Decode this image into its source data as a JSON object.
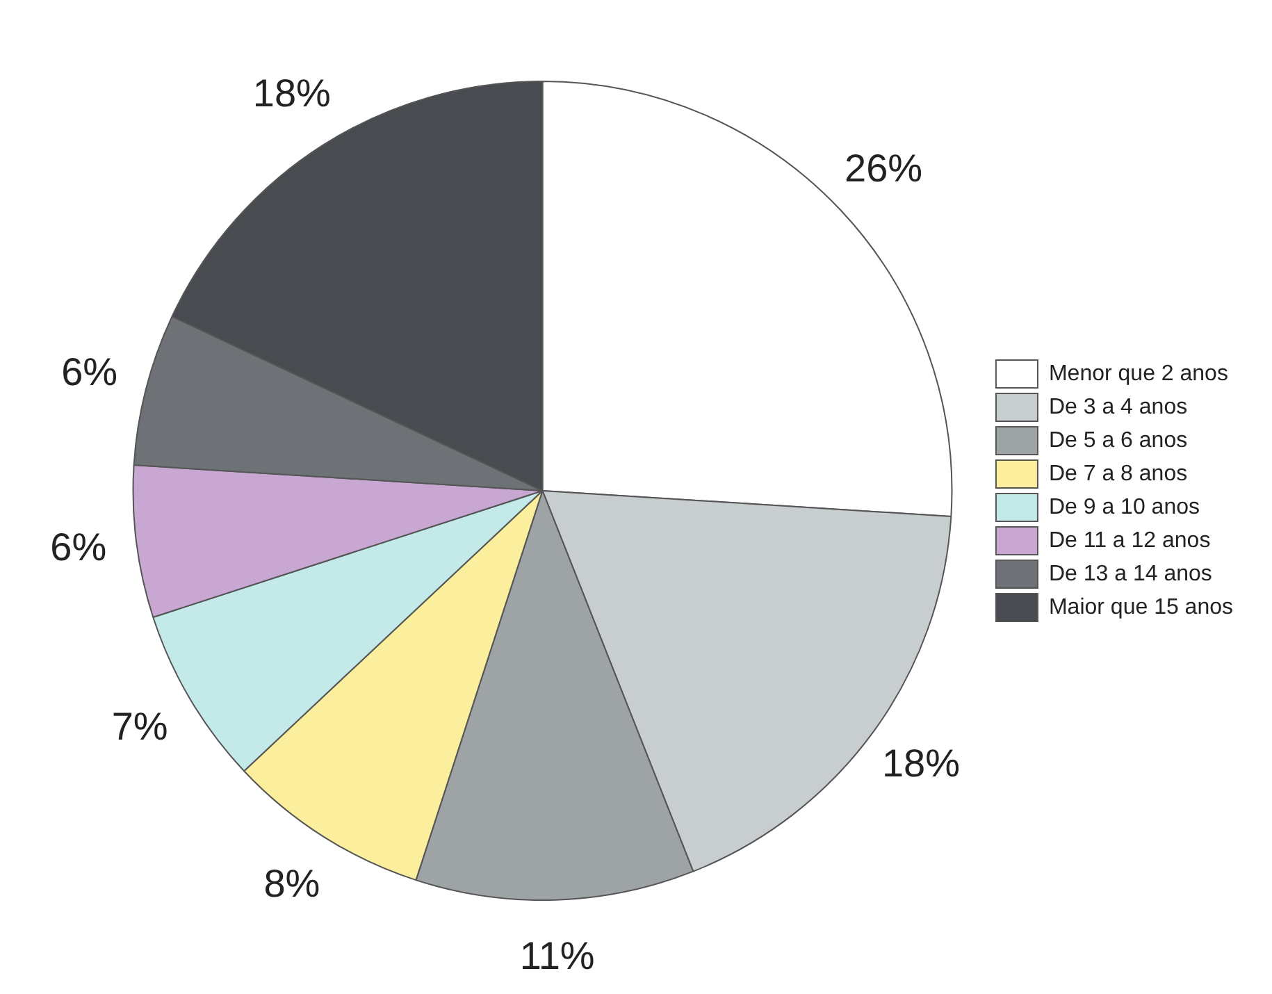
{
  "chart_data": {
    "type": "pie",
    "categories": [
      "Menor que 2 anos",
      "De 3 a 4 anos",
      "De 5 a 6 anos",
      "De 7 a 8 anos",
      "De 9 a 10 anos",
      "De 11 a 12 anos",
      "De 13 a 14 anos",
      "Maior que 15 anos"
    ],
    "values": [
      26,
      18,
      11,
      8,
      7,
      6,
      6,
      18
    ],
    "colors": [
      "#ffffff",
      "#c8cdd0",
      "#9ea3a6",
      "#fbee9c",
      "#c3e9e8",
      "#c8a8d3",
      "#6e7276",
      "#484c50"
    ],
    "value_labels": [
      "26%",
      "18%",
      "11%",
      "8%",
      "7%",
      "6%",
      "6%",
      "18%"
    ],
    "legend": "right"
  }
}
